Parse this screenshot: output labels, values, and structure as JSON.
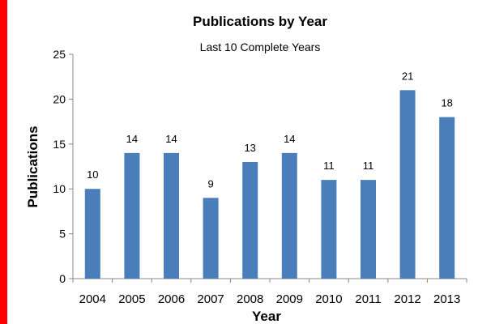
{
  "chart_data": {
    "type": "bar",
    "title": "Publications by Year",
    "subtitle": "Last 10 Complete Years",
    "xlabel": "Year",
    "ylabel": "Publications",
    "categories": [
      "2004",
      "2005",
      "2006",
      "2007",
      "2008",
      "2009",
      "2010",
      "2011",
      "2012",
      "2013"
    ],
    "values": [
      10,
      14,
      14,
      9,
      13,
      14,
      11,
      11,
      21,
      18
    ],
    "data_labels": [
      "10",
      "14",
      "14",
      "9",
      "13",
      "14",
      "11",
      "11",
      "21",
      "18"
    ],
    "ylim": [
      0,
      25
    ],
    "yticks": [
      "0",
      "5",
      "10",
      "15",
      "20",
      "25"
    ],
    "grid": false,
    "legend": "none",
    "bar_color": "#4a7ebb"
  }
}
